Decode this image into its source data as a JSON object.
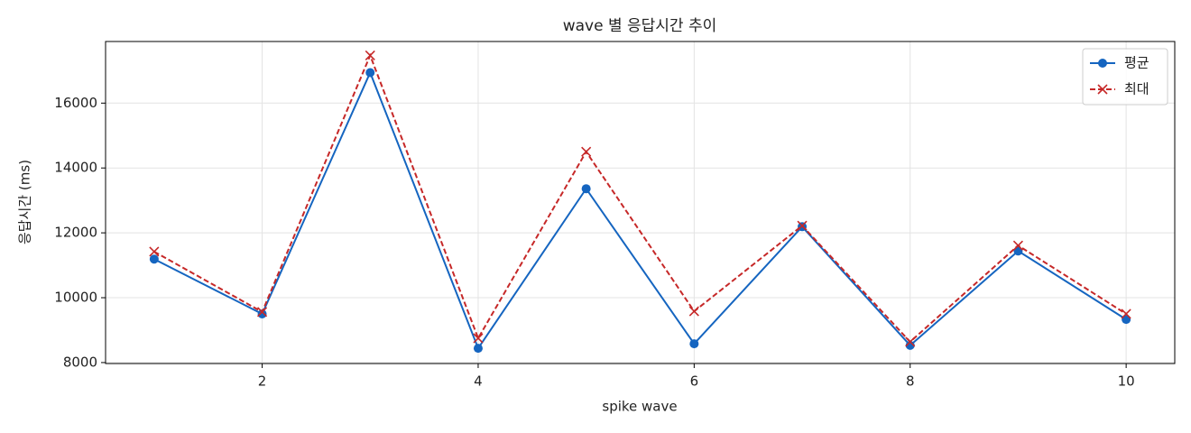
{
  "chart_data": {
    "type": "line",
    "title": "wave 별 응답시간 추이",
    "x_label": "spike wave",
    "y_label": "응답시간 (ms)",
    "x": [
      1,
      2,
      3,
      4,
      5,
      6,
      7,
      8,
      9,
      10
    ],
    "series": [
      {
        "name": "평균",
        "color": "#1565c0",
        "marker": "o",
        "linestyle": "solid",
        "values": [
          11190,
          9500,
          16940,
          8440,
          13360,
          8580,
          12190,
          8530,
          11440,
          9330
        ]
      },
      {
        "name": "최대",
        "color": "#c62828",
        "marker": "x",
        "linestyle": "dashed",
        "values": [
          11420,
          9560,
          17470,
          8750,
          14500,
          9580,
          12220,
          8640,
          11610,
          9500
        ]
      }
    ],
    "xlim": [
      0.55,
      10.45
    ],
    "xticks": [
      2,
      4,
      6,
      8,
      10
    ],
    "ylim": [
      7970,
      17900
    ],
    "yticks": [
      8000,
      10000,
      12000,
      14000,
      16000
    ],
    "grid": true,
    "legend": "upper right"
  }
}
